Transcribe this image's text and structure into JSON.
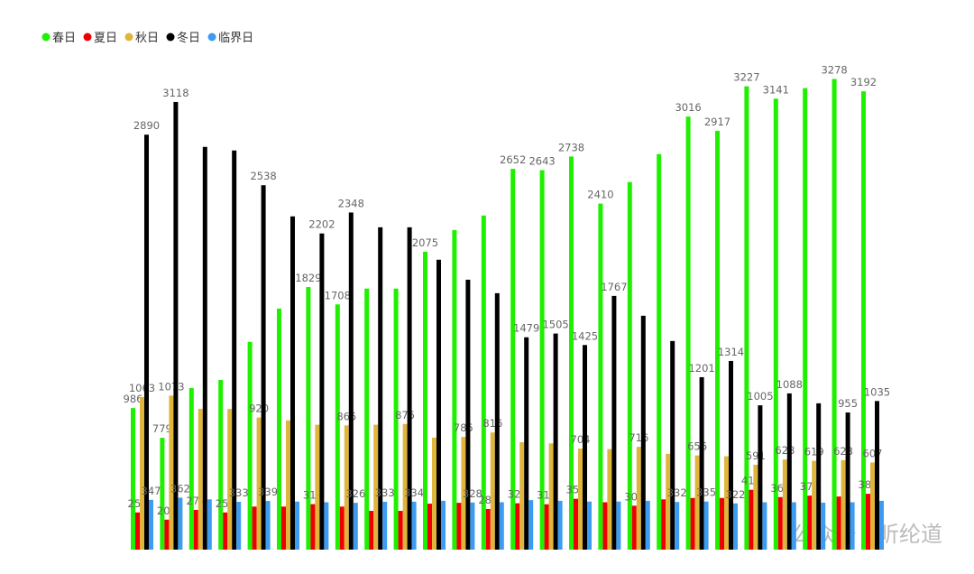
{
  "chart_data": {
    "type": "bar",
    "categories": [
      null,
      null,
      null,
      null,
      null,
      null,
      null,
      null,
      null,
      null,
      null,
      null,
      null,
      null,
      null,
      null,
      null,
      null,
      null,
      null,
      null,
      null,
      null,
      null,
      null,
      null
    ],
    "ylim": [
      0,
      3300
    ],
    "legend": "top-left",
    "series": [
      {
        "name": "春日",
        "color": "#1ef000",
        "values": [
          986,
          779,
          1126,
          1182,
          1447,
          1679,
          1829,
          1708,
          1818,
          1818,
          2075,
          2226,
          2327,
          2652,
          2643,
          2738,
          2410,
          2560,
          2755,
          3016,
          2917,
          3227,
          3141,
          3214,
          3278,
          3192
        ],
        "value_labels": [
          "986",
          "779",
          null,
          null,
          null,
          null,
          "1829",
          "1708",
          null,
          null,
          "2075",
          null,
          null,
          "2652",
          "2643",
          "2738",
          "2410",
          null,
          null,
          "3016",
          "2917",
          "3227",
          "3141",
          null,
          "3278",
          "3192"
        ]
      },
      {
        "name": "夏日",
        "color": "#ee0000",
        "values": [
          259,
          209,
          277,
          259,
          300,
          300,
          317,
          300,
          270,
          270,
          320,
          326,
          283,
          323,
          316,
          354,
          330,
          306,
          350,
          360,
          360,
          417,
          366,
          376,
          370,
          389
        ],
        "value_labels": [
          "259",
          "209",
          "277",
          "259",
          null,
          null,
          "317",
          null,
          null,
          null,
          null,
          null,
          "283",
          "323",
          "316",
          "354",
          null,
          "306",
          null,
          null,
          null,
          "417",
          "366",
          "376",
          null,
          "389"
        ]
      },
      {
        "name": "秋日",
        "color": "#e0b53b",
        "values": [
          1063,
          1073,
          981,
          980,
          920,
          900,
          870,
          865,
          870,
          875,
          780,
          785,
          816,
          748,
          740,
          704,
          700,
          716,
          667,
          656,
          650,
          591,
          628,
          619,
          623,
          607
        ],
        "value_labels": [
          "1063",
          "1073",
          null,
          null,
          "920",
          null,
          null,
          "865",
          null,
          "875",
          null,
          "785",
          "816",
          null,
          null,
          "704",
          null,
          "716",
          null,
          "656",
          null,
          "591",
          "628",
          "619",
          "623",
          "607"
        ]
      },
      {
        "name": "冬日",
        "color": "#000000",
        "values": [
          2890,
          3118,
          2805,
          2780,
          2538,
          2321,
          2202,
          2348,
          2245,
          2245,
          2019,
          1880,
          1786,
          1479,
          1505,
          1425,
          1767,
          1629,
          1453,
          1201,
          1314,
          1005,
          1088,
          1019,
          955,
          1035
        ],
        "value_labels": [
          "2890",
          "3118",
          null,
          null,
          "2538",
          null,
          "2202",
          "2348",
          null,
          null,
          null,
          null,
          null,
          "1479",
          "1505",
          "1425",
          "1767",
          null,
          null,
          "1201",
          "1314",
          "1005",
          "1088",
          null,
          "955",
          "1035"
        ]
      },
      {
        "name": "临界日",
        "color": "#3d9cf2",
        "values": [
          347,
          362,
          350,
          333,
          339,
          335,
          330,
          326,
          333,
          334,
          340,
          328,
          330,
          345,
          340,
          335,
          335,
          340,
          332,
          335,
          322,
          330,
          330,
          327,
          330,
          340
        ],
        "value_labels": [
          "347",
          "362",
          null,
          "333",
          "339",
          null,
          null,
          "326",
          "333",
          "334",
          null,
          "328",
          null,
          null,
          null,
          null,
          null,
          null,
          "332",
          "335",
          "322",
          null,
          null,
          null,
          null,
          null
        ]
      }
    ]
  },
  "watermark": "公众号 · 昕纶道"
}
